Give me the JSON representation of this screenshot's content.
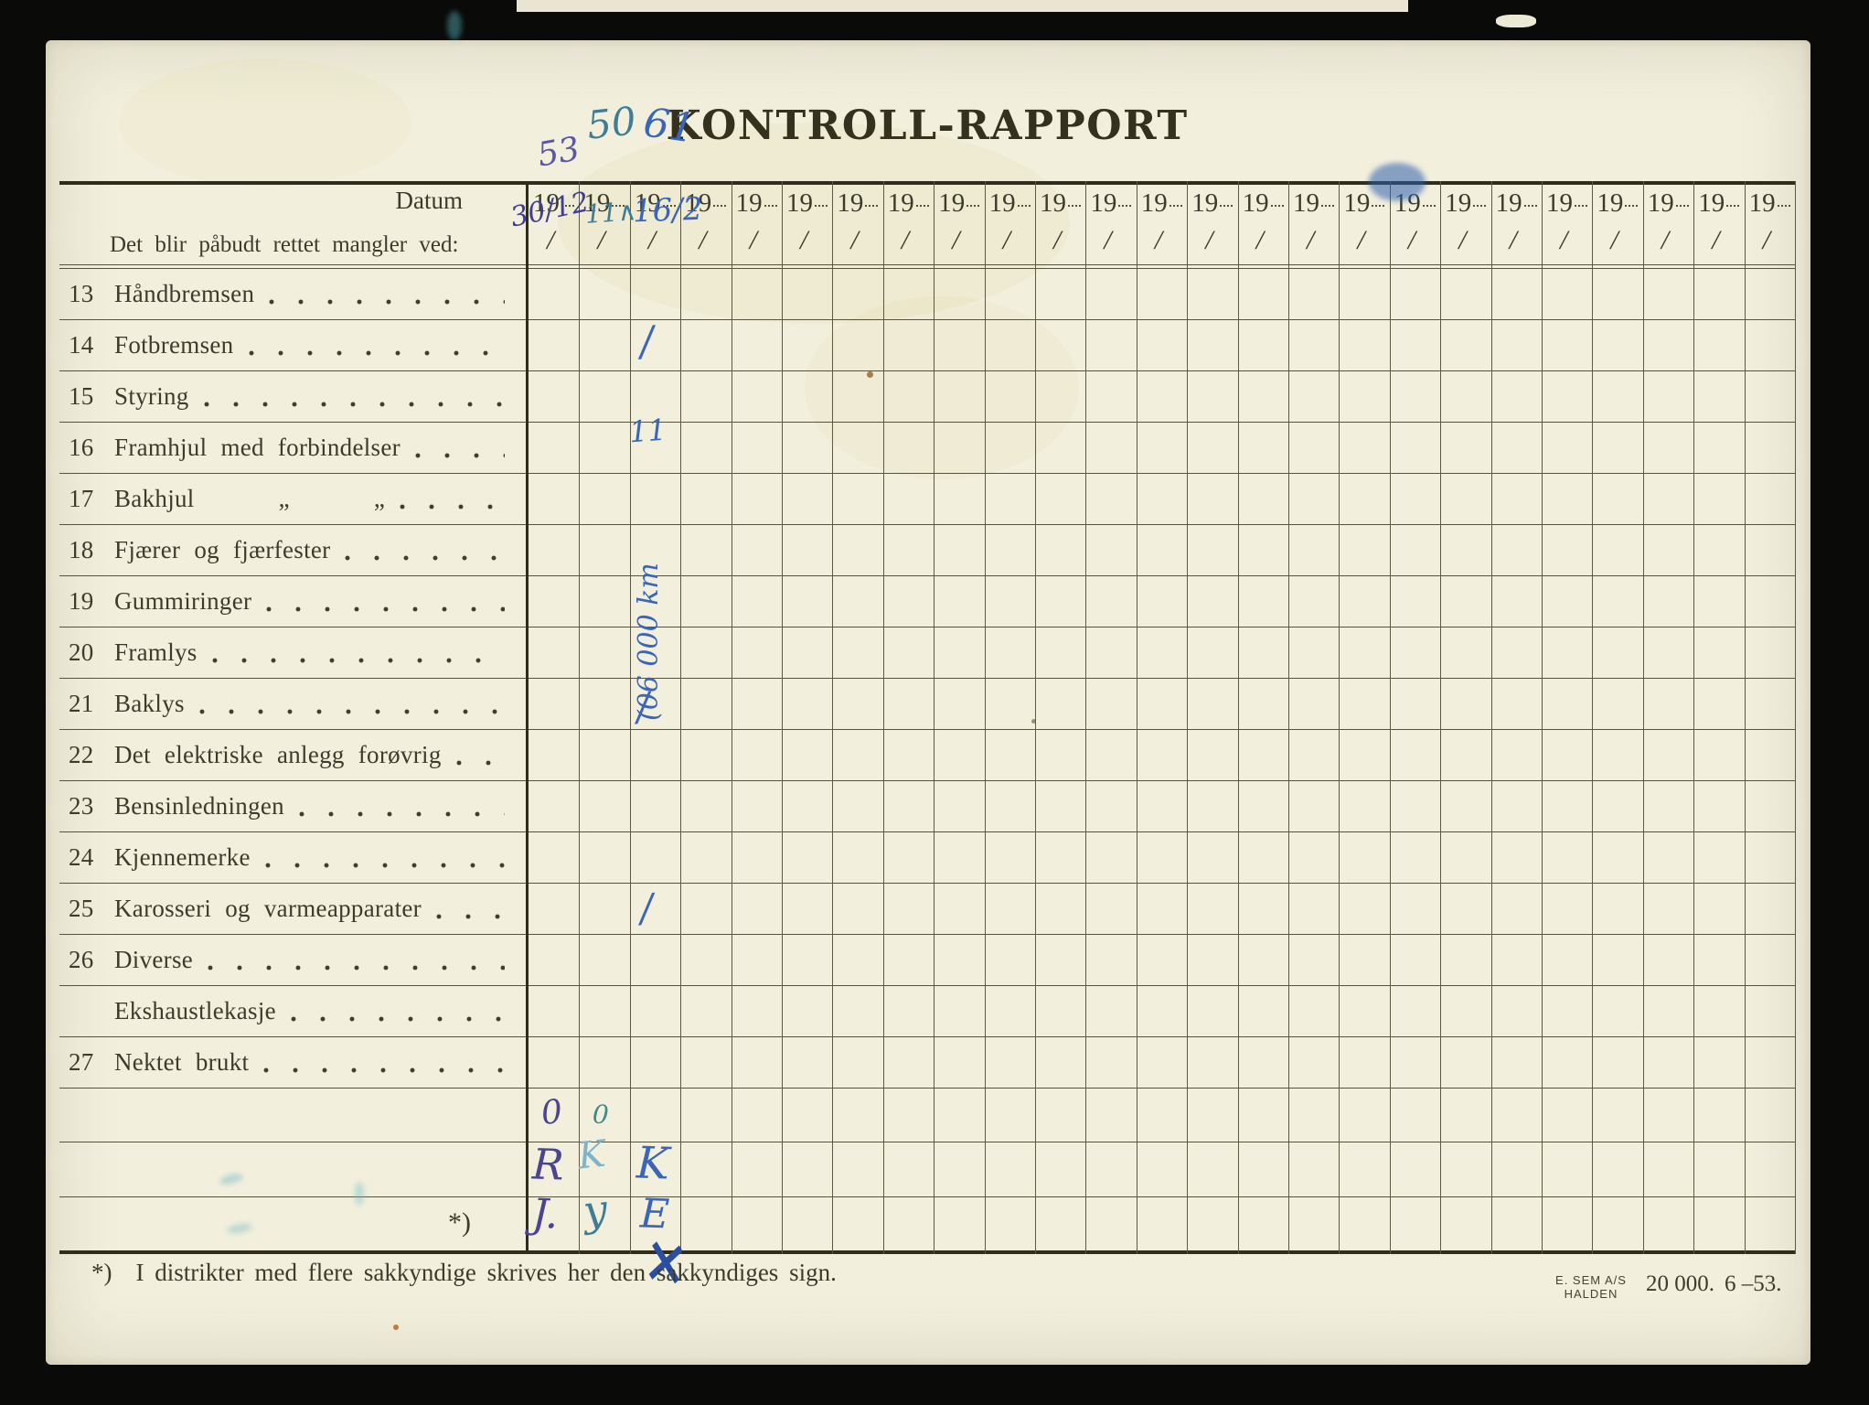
{
  "title": "KONTROLL-RAPPORT",
  "header": {
    "datum_label": "Datum",
    "instruction": "Det blir påbudt rettet mangler ved:",
    "year_prefix": "19",
    "column_count": 25,
    "printed_slash": "/"
  },
  "rows": [
    {
      "num": "13",
      "label": "Håndbremsen"
    },
    {
      "num": "14",
      "label": "Fotbremsen"
    },
    {
      "num": "15",
      "label": "Styring"
    },
    {
      "num": "16",
      "label": "Framhjul med forbindelser"
    },
    {
      "num": "17",
      "label": "Bakhjul",
      "ditto": "„"
    },
    {
      "num": "18",
      "label": "Fjærer og fjærfester"
    },
    {
      "num": "19",
      "label": "Gummiringer"
    },
    {
      "num": "20",
      "label": "Framlys"
    },
    {
      "num": "21",
      "label": "Baklys"
    },
    {
      "num": "22",
      "label": "Det elektriske anlegg forøvrig"
    },
    {
      "num": "23",
      "label": "Bensinledningen"
    },
    {
      "num": "24",
      "label": "Kjennemerke"
    },
    {
      "num": "25",
      "label": "Karosseri og varmeapparater"
    },
    {
      "num": "26",
      "label": "Diverse"
    },
    {
      "num": "",
      "label": "Ekshaustlekasje"
    },
    {
      "num": "27",
      "label": "Nektet brukt"
    }
  ],
  "blank_rows": {
    "count": 3,
    "asterisk_label": "*)"
  },
  "handwriting": {
    "years": [
      {
        "col": 1,
        "text": "53"
      },
      {
        "col": 2,
        "text": "50"
      },
      {
        "col": 3,
        "text": "61"
      }
    ],
    "dates": [
      {
        "col": 1,
        "text": "30/12"
      },
      {
        "col": 2,
        "text": "11∧"
      },
      {
        "col": 3,
        "text": "16/2"
      }
    ],
    "cell_marks": [
      {
        "row": "14",
        "col": 3,
        "text": "/"
      },
      {
        "row": "16",
        "col": 3,
        "text": "11"
      },
      {
        "row": "21",
        "col": 3,
        "text": "/"
      },
      {
        "row": "25",
        "col": 3,
        "text": "/"
      }
    ],
    "vertical_note": {
      "col": 3,
      "text": "(06 000 km"
    },
    "signature_marks": [
      {
        "row": 1,
        "col": 1,
        "text": "0"
      },
      {
        "row": 1,
        "col": 2,
        "text": "0"
      },
      {
        "row": 2,
        "col": 1,
        "text": "R"
      },
      {
        "row": 2,
        "col": 2,
        "text": "K"
      },
      {
        "row": 2,
        "col": 3,
        "text": "K"
      },
      {
        "row": 3,
        "col": 1,
        "text": "J."
      },
      {
        "row": 3,
        "col": 2,
        "text": "y"
      },
      {
        "row": 3,
        "col": 3,
        "text": "E"
      }
    ],
    "footnote_cross": "×"
  },
  "footnote": {
    "marker": "*)",
    "text": "I distrikter med flere sakkyndige skrives her den sakkyndiges sign."
  },
  "printer": {
    "line1": "E. SEM A/S",
    "line2": "HALDEN",
    "quantity": "20 000.",
    "date_code": "6 –53."
  },
  "colors": {
    "paper": "#f2efdd",
    "print_ink": "#3d3b2c",
    "grid_line": "#56533b",
    "hand_blue": "#3b66b8",
    "hand_purple": "#4a4592",
    "hand_teal": "#3f7d95",
    "hand_light_teal": "#7fb3c9"
  }
}
